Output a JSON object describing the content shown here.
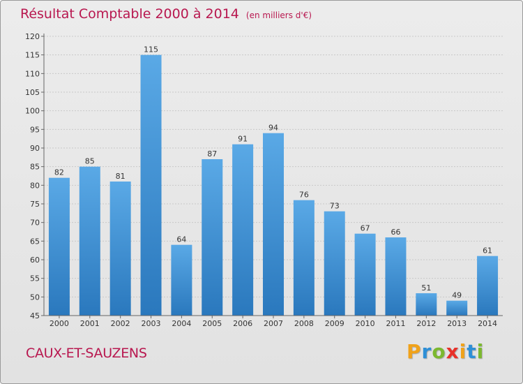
{
  "header": {
    "title": "Résultat Comptable 2000 à 2014",
    "subtitle": "(en milliers d'€)"
  },
  "commune_name": "CAUX-ET-SAUZENS",
  "logo": {
    "text": "Proxiti",
    "letters": [
      "P",
      "r",
      "o",
      "x",
      "i",
      "t",
      "i"
    ],
    "colors": [
      "#f0a21a",
      "#2e8fd6",
      "#7cb82f",
      "#e8312a",
      "#f0a21a",
      "#2e8fd6",
      "#7cb82f"
    ]
  },
  "colors": {
    "bar_top": "#5aa9e6",
    "bar_bottom": "#2a78bd",
    "title": "#b8174f"
  },
  "chart_data": {
    "type": "bar",
    "title": "Résultat Comptable 2000 à 2014",
    "subtitle": "(en milliers d'€)",
    "categories": [
      "2000",
      "2001",
      "2002",
      "2003",
      "2004",
      "2005",
      "2006",
      "2007",
      "2008",
      "2009",
      "2010",
      "2011",
      "2012",
      "2013",
      "2014"
    ],
    "values": [
      82,
      85,
      81,
      115,
      64,
      87,
      91,
      94,
      76,
      73,
      67,
      66,
      51,
      49,
      61
    ],
    "ylim": [
      45,
      120
    ],
    "yticks": [
      45,
      50,
      55,
      60,
      65,
      70,
      75,
      80,
      85,
      90,
      95,
      100,
      105,
      110,
      115,
      120
    ],
    "grid": true,
    "xlabel": "",
    "ylabel": ""
  }
}
